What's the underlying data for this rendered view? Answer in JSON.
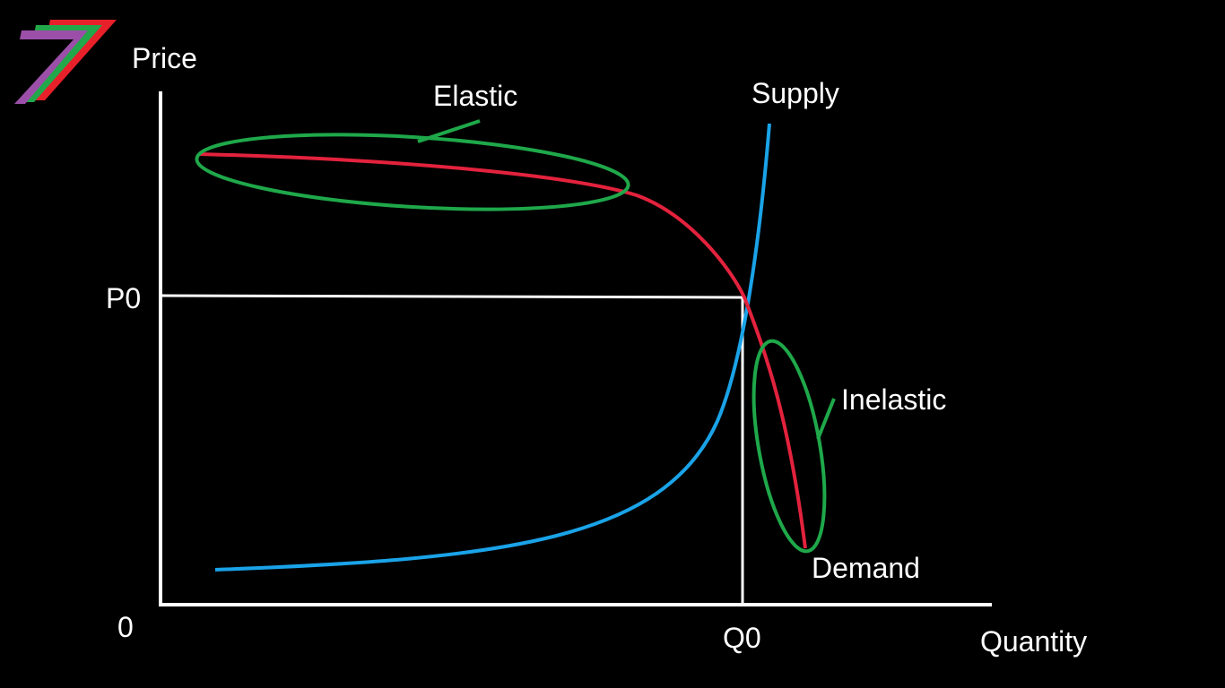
{
  "labels": {
    "y_axis": "Price",
    "x_axis": "Quantity",
    "origin": "0",
    "price_equilibrium": "P0",
    "quantity_equilibrium": "Q0",
    "supply": "Supply",
    "demand": "Demand",
    "elastic": "Elastic",
    "inelastic": "Inelastic"
  },
  "colors": {
    "background": "#000000",
    "axes": "#ffffff",
    "supply_curve": "#1aa3e8",
    "demand_curve": "#e3223d",
    "highlight_ellipse": "#1fa84a",
    "logo_red": "#e8202a",
    "logo_green": "#22a84a",
    "logo_purple": "#9b4fa8"
  },
  "logo": {
    "icon": "seven-stripes-logo-icon"
  }
}
